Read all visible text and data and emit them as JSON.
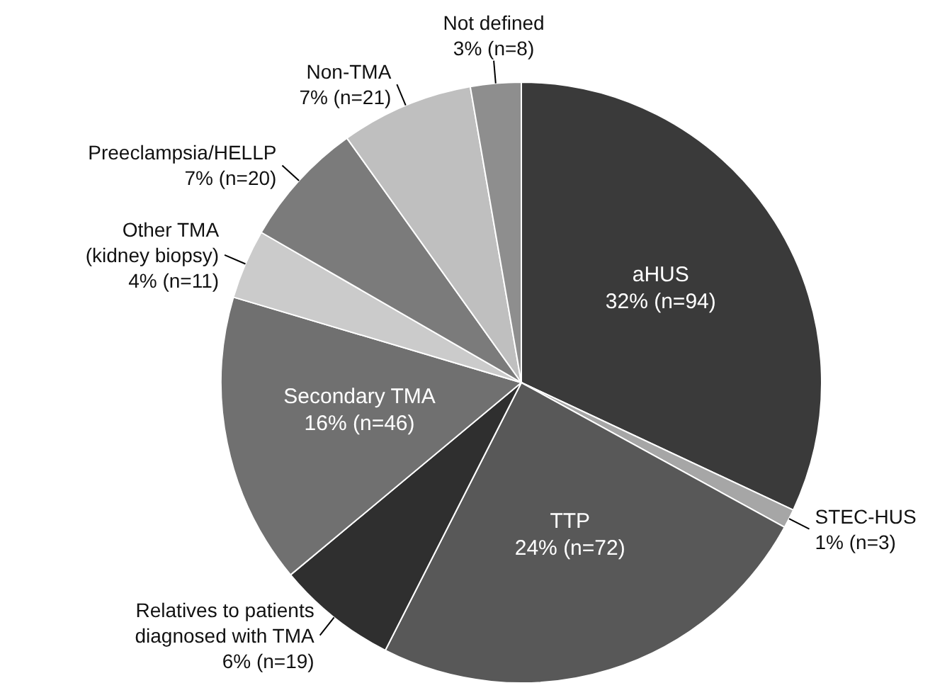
{
  "chart_data": {
    "type": "pie",
    "categories": [
      "aHUS",
      "STEC-HUS",
      "TTP",
      "Relatives to patients diagnosed with TMA",
      "Secondary TMA",
      "Other TMA (kidney biopsy)",
      "Preeclampsia/HELLP",
      "Non-TMA",
      "Not defined"
    ],
    "values": [
      94,
      3,
      72,
      19,
      46,
      11,
      20,
      21,
      8
    ],
    "value_labels": [
      "32% (n=94)",
      "1% (n=3)",
      "24% (n=72)",
      "6% (n=19)",
      "16% (n=46)",
      "4% (n=11)",
      "7% (n=20)",
      "7% (n=21)",
      "3% (n=8)"
    ],
    "colors": [
      "#3a3a3a",
      "#a6a6a6",
      "#585858",
      "#2f2f2f",
      "#707070",
      "#cbcbcb",
      "#7b7b7b",
      "#bfbfbf",
      "#8e8e8e"
    ],
    "legend": false
  }
}
